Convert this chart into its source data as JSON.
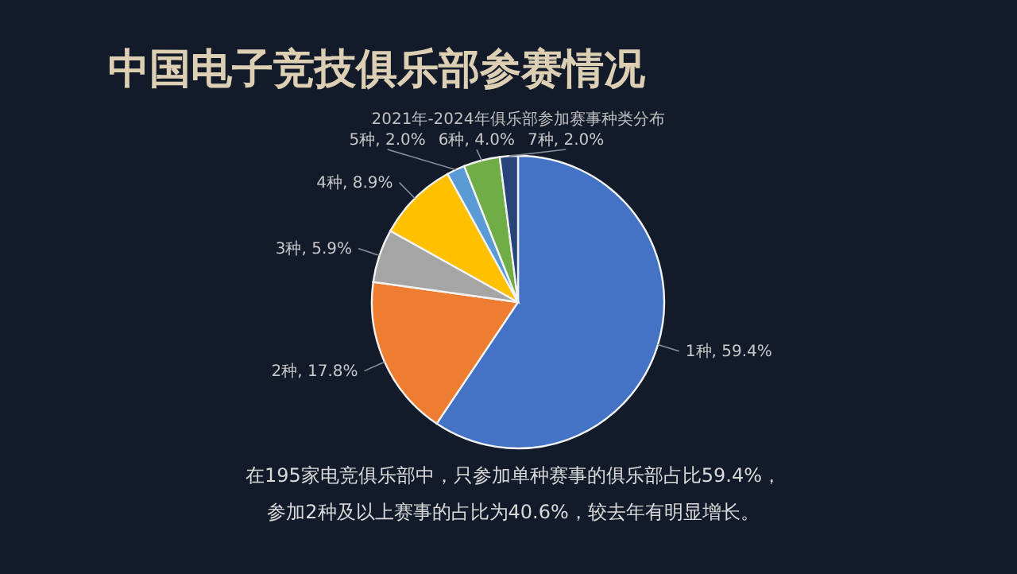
{
  "chart_data": {
    "type": "pie",
    "title": "中国电子竞技俱乐部参赛情况",
    "subtitle": "2021年-2024年俱乐部参加赛事种类分布",
    "categories": [
      "1种",
      "2种",
      "3种",
      "4种",
      "5种",
      "6种",
      "7种"
    ],
    "values": [
      59.4,
      17.8,
      5.9,
      8.9,
      2.0,
      4.0,
      2.0
    ],
    "colors": [
      "#4472c4",
      "#ed7d31",
      "#a5a5a5",
      "#ffc000",
      "#5b9bd5",
      "#70ad47",
      "#264478"
    ],
    "value_labels": [
      ", 59.4%",
      ", 17.8%",
      ", 5.9%",
      ", 8.9%",
      ", 2.0%",
      ", 4.0%",
      ", 2.0%"
    ],
    "annotations": [
      "在195家电竞俱乐部中，只参加单种赛事的俱乐部占比59.4%，",
      "参加2种及以上赛事的占比为40.6%，较去年有明显增长。"
    ]
  }
}
